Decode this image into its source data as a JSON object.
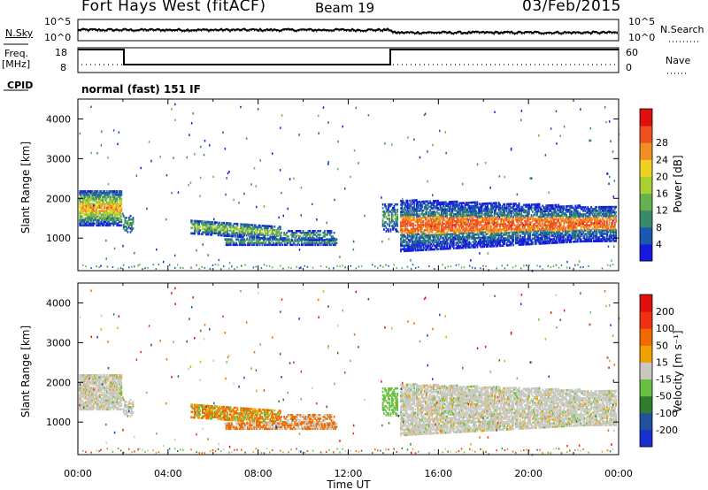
{
  "header": {
    "site": "Fort Hays West (fitACF)",
    "beam": "Beam 19",
    "date": "03/Feb/2015"
  },
  "status_panels": {
    "nsky_label": "N.Sky",
    "nsearch_label": "N.Search",
    "noise_ticks": [
      "10^5",
      "10^0"
    ],
    "freq_label": "Freq.",
    "freq_unit": "[MHz]",
    "freq_ticks": [
      "18",
      "8"
    ],
    "nave_label": "Nave",
    "nave_ticks": [
      "60",
      "0"
    ],
    "cpid_label": "CPID",
    "cpid_value": "normal (fast) 151 IF"
  },
  "chart_data": [
    {
      "type": "heatmap",
      "name": "Power",
      "xlabel": "",
      "ylabel": "Slant Range [km]",
      "xlim": [
        0,
        24
      ],
      "ylim": [
        180,
        4500
      ],
      "y_ticks": [
        "1000",
        "2000",
        "3000",
        "4000"
      ],
      "colorbar": {
        "label": "Power [dB]",
        "ticks": [
          "4",
          "8",
          "12",
          "16",
          "20",
          "24",
          "28"
        ],
        "colors": [
          "#1818e0",
          "#1c58b0",
          "#3a8a6a",
          "#66b050",
          "#a8d030",
          "#f0d020",
          "#f09020",
          "#f05020",
          "#e01010"
        ]
      }
    },
    {
      "type": "heatmap",
      "name": "Velocity",
      "xlabel": "Time UT",
      "ylabel": "Slant Range [km]",
      "xlim": [
        0,
        24
      ],
      "ylim": [
        180,
        4500
      ],
      "y_ticks": [
        "1000",
        "2000",
        "3000",
        "4000"
      ],
      "x_ticks": [
        "00:00",
        "04:00",
        "08:00",
        "12:00",
        "16:00",
        "20:00",
        "00:00"
      ],
      "colorbar": {
        "label": "Velocity [m s⁻¹]",
        "ticks": [
          "200",
          "100",
          "50",
          "15",
          "-15",
          "-50",
          "-100",
          "-200"
        ],
        "colors": [
          "#1a2fd0",
          "#2050a0",
          "#2e7e2e",
          "#68c040",
          "#c8c8c0",
          "#f0a000",
          "#f06a00",
          "#f03010",
          "#e01010"
        ]
      }
    }
  ]
}
